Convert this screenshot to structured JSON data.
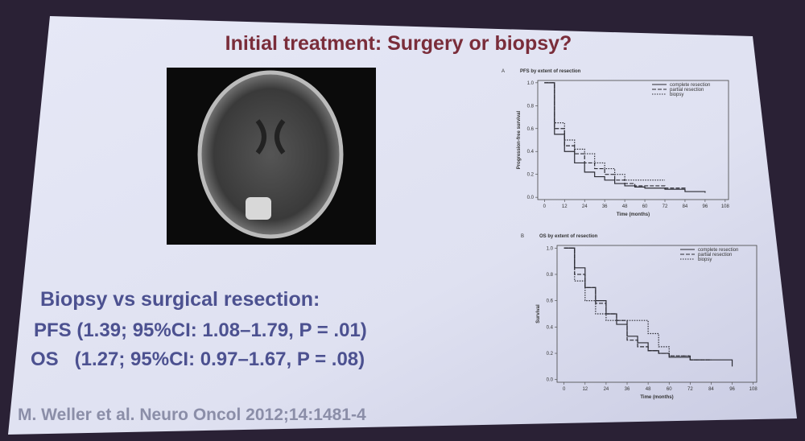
{
  "header": {
    "title": "Initial treatment: Surgery or biopsy?"
  },
  "results": {
    "heading": "Biopsy vs surgical resection:",
    "lines": [
      "PFS (1.39; 95%CI: 1.08–1.79, P = .01)",
      "OS   (1.27; 95%CI: 0.97–1.67, P = .08)"
    ]
  },
  "citation": "M. Weller et al. Neuro Oncol 2012;14:1481-4",
  "chart_data": [
    {
      "type": "line",
      "panel": "A",
      "title": "PFS by extent of resection",
      "x_label": "Time (months)",
      "y_label": "Progression-free survival",
      "x": [
        0,
        6,
        12,
        18,
        24,
        30,
        36,
        42,
        48,
        54,
        60,
        72,
        84,
        96
      ],
      "series": [
        {
          "name": "complete resection",
          "color": "#2b2b33",
          "style": "solid",
          "values": [
            1.0,
            0.55,
            0.4,
            0.3,
            0.22,
            0.18,
            0.15,
            0.12,
            0.1,
            0.09,
            0.08,
            0.07,
            0.05,
            0.04
          ]
        },
        {
          "name": "partial resection",
          "color": "#2b2b33",
          "style": "dashed",
          "values": [
            1.0,
            0.6,
            0.45,
            0.38,
            0.3,
            0.25,
            0.2,
            0.15,
            0.12,
            0.1,
            0.1,
            0.08,
            0.06,
            null
          ]
        },
        {
          "name": "biopsy",
          "color": "#2b2b33",
          "style": "dotted",
          "values": [
            1.0,
            0.65,
            0.5,
            0.42,
            0.38,
            0.3,
            0.25,
            0.2,
            0.15,
            0.15,
            0.15,
            0.15,
            null,
            null
          ]
        }
      ],
      "xlim": [
        -4,
        110
      ],
      "xticks": [
        0,
        12,
        24,
        36,
        48,
        60,
        72,
        84,
        96,
        108
      ],
      "ylim": [
        -0.02,
        1.02
      ],
      "yticks": [
        {
          "value": 0,
          "label": "0.0"
        },
        0.2,
        0.4,
        0.6,
        0.8,
        {
          "value": 1,
          "label": "1.0"
        }
      ],
      "legend": "top-right"
    },
    {
      "type": "line",
      "panel": "B",
      "title": "OS by extent of resection",
      "x_label": "Time (months)",
      "y_label": "Survival",
      "x": [
        0,
        6,
        12,
        18,
        24,
        30,
        36,
        42,
        48,
        54,
        60,
        72,
        84,
        96
      ],
      "series": [
        {
          "name": "complete resection",
          "color": "#2b2b33",
          "style": "solid",
          "values": [
            1.0,
            0.85,
            0.7,
            0.6,
            0.5,
            0.42,
            0.33,
            0.28,
            0.22,
            0.2,
            0.17,
            0.15,
            0.15,
            0.1
          ]
        },
        {
          "name": "partial resection",
          "color": "#2b2b33",
          "style": "dashed",
          "values": [
            1.0,
            0.8,
            0.7,
            0.58,
            0.5,
            0.45,
            0.3,
            0.25,
            0.22,
            0.2,
            0.18,
            0.15,
            0.15,
            null
          ]
        },
        {
          "name": "biopsy",
          "color": "#2b2b33",
          "style": "dotted",
          "values": [
            1.0,
            0.75,
            0.6,
            0.5,
            0.45,
            0.45,
            0.45,
            0.45,
            0.35,
            0.25,
            0.18,
            0.15,
            0.15,
            null
          ]
        }
      ],
      "xlim": [
        -4,
        110
      ],
      "xticks": [
        0,
        12,
        24,
        36,
        48,
        60,
        72,
        84,
        96,
        108
      ],
      "ylim": [
        -0.02,
        1.02
      ],
      "yticks": [
        {
          "value": 0,
          "label": "0.0"
        },
        0.2,
        0.4,
        0.6,
        0.8,
        {
          "value": 1,
          "label": "1.0"
        }
      ],
      "legend": "top-right"
    }
  ]
}
